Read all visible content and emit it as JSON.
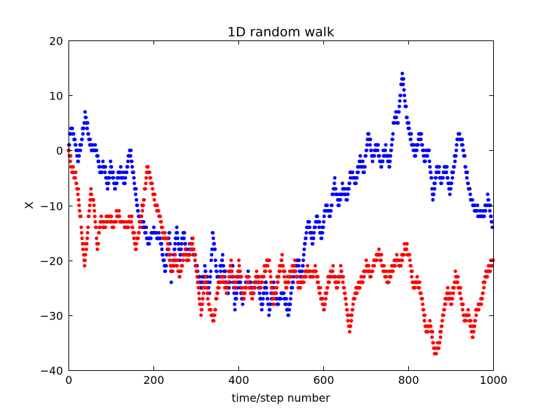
{
  "chart_data": {
    "type": "scatter",
    "title": "1D random walk",
    "xlabel": "time/step number",
    "ylabel": "X",
    "xlim": [
      0,
      1000
    ],
    "ylim": [
      -40,
      20
    ],
    "xticks": [
      0,
      200,
      400,
      600,
      800,
      1000
    ],
    "yticks": [
      -40,
      -30,
      -20,
      -10,
      0,
      10,
      20
    ],
    "grid": false,
    "legend": "none",
    "series": [
      {
        "color": "#0000ff",
        "marker": "circle",
        "keypoints": [
          [
            0,
            0
          ],
          [
            6,
            4
          ],
          [
            15,
            2
          ],
          [
            22,
            -2
          ],
          [
            30,
            1
          ],
          [
            40,
            6
          ],
          [
            48,
            2
          ],
          [
            55,
            0
          ],
          [
            65,
            0
          ],
          [
            75,
            -4
          ],
          [
            85,
            -3
          ],
          [
            92,
            -7
          ],
          [
            100,
            -3
          ],
          [
            110,
            -7
          ],
          [
            120,
            -4
          ],
          [
            132,
            -6
          ],
          [
            145,
            0
          ],
          [
            155,
            -6
          ],
          [
            165,
            -12
          ],
          [
            178,
            -14
          ],
          [
            188,
            -17
          ],
          [
            198,
            -15
          ],
          [
            215,
            -16
          ],
          [
            228,
            -22
          ],
          [
            238,
            -15
          ],
          [
            242,
            -24
          ],
          [
            255,
            -14
          ],
          [
            262,
            -20
          ],
          [
            270,
            -15
          ],
          [
            280,
            -20
          ],
          [
            290,
            -17
          ],
          [
            300,
            -21
          ],
          [
            312,
            -25
          ],
          [
            322,
            -22
          ],
          [
            332,
            -26
          ],
          [
            340,
            -15
          ],
          [
            352,
            -25
          ],
          [
            362,
            -20
          ],
          [
            375,
            -26
          ],
          [
            386,
            -21
          ],
          [
            392,
            -29
          ],
          [
            400,
            -23
          ],
          [
            410,
            -28
          ],
          [
            422,
            -23
          ],
          [
            435,
            -26
          ],
          [
            445,
            -23
          ],
          [
            455,
            -29
          ],
          [
            465,
            -24
          ],
          [
            472,
            -30
          ],
          [
            482,
            -25
          ],
          [
            492,
            -28
          ],
          [
            505,
            -26
          ],
          [
            518,
            -30
          ],
          [
            530,
            -23
          ],
          [
            540,
            -20
          ],
          [
            548,
            -24
          ],
          [
            555,
            -18
          ],
          [
            565,
            -13
          ],
          [
            575,
            -17
          ],
          [
            585,
            -12
          ],
          [
            596,
            -16
          ],
          [
            606,
            -10
          ],
          [
            616,
            -12
          ],
          [
            626,
            -6
          ],
          [
            636,
            -10
          ],
          [
            646,
            -7
          ],
          [
            656,
            -9
          ],
          [
            666,
            -4
          ],
          [
            676,
            -6
          ],
          [
            686,
            -2
          ],
          [
            696,
            -4
          ],
          [
            706,
            3
          ],
          [
            716,
            -2
          ],
          [
            726,
            1
          ],
          [
            736,
            -3
          ],
          [
            746,
            0
          ],
          [
            756,
            -3
          ],
          [
            768,
            6
          ],
          [
            776,
            5
          ],
          [
            786,
            14
          ],
          [
            796,
            6
          ],
          [
            806,
            2
          ],
          [
            816,
            -1
          ],
          [
            828,
            3
          ],
          [
            838,
            -2
          ],
          [
            848,
            0
          ],
          [
            858,
            -9
          ],
          [
            868,
            -3
          ],
          [
            878,
            -6
          ],
          [
            888,
            -3
          ],
          [
            898,
            -8
          ],
          [
            908,
            -3
          ],
          [
            918,
            3
          ],
          [
            928,
            1
          ],
          [
            938,
            -5
          ],
          [
            948,
            -9
          ],
          [
            958,
            -11
          ],
          [
            968,
            -12
          ],
          [
            978,
            -12
          ],
          [
            988,
            -9
          ],
          [
            998,
            -14
          ]
        ]
      },
      {
        "color": "#ff0000",
        "marker": "circle",
        "keypoints": [
          [
            0,
            0
          ],
          [
            8,
            -4
          ],
          [
            16,
            -5
          ],
          [
            24,
            -9
          ],
          [
            32,
            -16
          ],
          [
            38,
            -21
          ],
          [
            45,
            -15
          ],
          [
            52,
            -8
          ],
          [
            60,
            -10
          ],
          [
            68,
            -18
          ],
          [
            75,
            -13
          ],
          [
            85,
            -14
          ],
          [
            95,
            -12
          ],
          [
            105,
            -14
          ],
          [
            115,
            -12
          ],
          [
            125,
            -13
          ],
          [
            135,
            -14
          ],
          [
            148,
            -13
          ],
          [
            158,
            -18
          ],
          [
            168,
            -14
          ],
          [
            178,
            -9
          ],
          [
            186,
            -3
          ],
          [
            195,
            -6
          ],
          [
            205,
            -10
          ],
          [
            215,
            -12
          ],
          [
            224,
            -16
          ],
          [
            232,
            -16
          ],
          [
            242,
            -22
          ],
          [
            252,
            -20
          ],
          [
            262,
            -23
          ],
          [
            272,
            -19
          ],
          [
            282,
            -20
          ],
          [
            292,
            -17
          ],
          [
            300,
            -21
          ],
          [
            312,
            -30
          ],
          [
            322,
            -23
          ],
          [
            332,
            -29
          ],
          [
            342,
            -31
          ],
          [
            352,
            -25
          ],
          [
            362,
            -23
          ],
          [
            372,
            -26
          ],
          [
            382,
            -21
          ],
          [
            392,
            -25
          ],
          [
            402,
            -21
          ],
          [
            412,
            -27
          ],
          [
            422,
            -23
          ],
          [
            432,
            -27
          ],
          [
            442,
            -23
          ],
          [
            452,
            -25
          ],
          [
            462,
            -22
          ],
          [
            472,
            -20
          ],
          [
            482,
            -28
          ],
          [
            492,
            -24
          ],
          [
            502,
            -20
          ],
          [
            512,
            -25
          ],
          [
            522,
            -23
          ],
          [
            532,
            -21
          ],
          [
            542,
            -25
          ],
          [
            552,
            -24
          ],
          [
            562,
            -22
          ],
          [
            572,
            -23
          ],
          [
            582,
            -22
          ],
          [
            592,
            -26
          ],
          [
            602,
            -29
          ],
          [
            612,
            -24
          ],
          [
            622,
            -22
          ],
          [
            632,
            -25
          ],
          [
            642,
            -22
          ],
          [
            652,
            -27
          ],
          [
            662,
            -33
          ],
          [
            672,
            -27
          ],
          [
            682,
            -25
          ],
          [
            692,
            -24
          ],
          [
            702,
            -21
          ],
          [
            712,
            -23
          ],
          [
            722,
            -20
          ],
          [
            732,
            -19
          ],
          [
            742,
            -22
          ],
          [
            752,
            -24
          ],
          [
            762,
            -22
          ],
          [
            772,
            -20
          ],
          [
            782,
            -21
          ],
          [
            792,
            -18
          ],
          [
            802,
            -19
          ],
          [
            812,
            -25
          ],
          [
            822,
            -24
          ],
          [
            832,
            -27
          ],
          [
            842,
            -33
          ],
          [
            852,
            -32
          ],
          [
            862,
            -37
          ],
          [
            872,
            -36
          ],
          [
            882,
            -30
          ],
          [
            892,
            -26
          ],
          [
            902,
            -28
          ],
          [
            912,
            -23
          ],
          [
            922,
            -26
          ],
          [
            932,
            -31
          ],
          [
            942,
            -30
          ],
          [
            952,
            -34
          ],
          [
            962,
            -29
          ],
          [
            972,
            -28
          ],
          [
            982,
            -23
          ],
          [
            992,
            -22
          ],
          [
            1000,
            -20
          ]
        ]
      }
    ]
  }
}
